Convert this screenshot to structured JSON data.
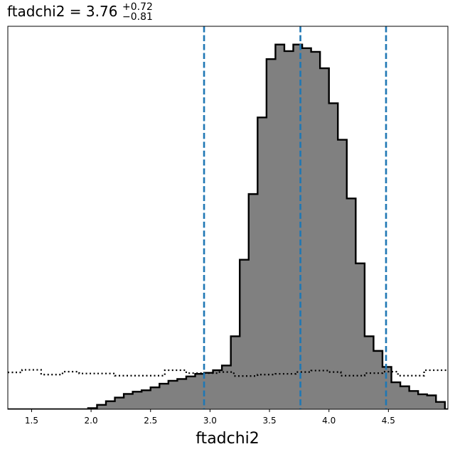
{
  "chart_data": {
    "type": "histogram",
    "title": {
      "param": "ftadchi2",
      "value": "3.76",
      "plus": "+0.72",
      "minus": "−0.81"
    },
    "xlabel": "ftadchi2",
    "ylabel": "",
    "xlim": [
      1.3,
      5.0
    ],
    "ylim": [
      0,
      1.05
    ],
    "y_ticks_shown": false,
    "grid": false,
    "x_ticks": [
      1.5,
      2.0,
      2.5,
      3.0,
      3.5,
      4.0,
      4.5
    ],
    "x_tick_labels": [
      "1.5",
      "2.0",
      "2.5",
      "3.0",
      "3.5",
      "4.0",
      "4.5"
    ],
    "bin_edges": [
      1.3,
      1.375,
      1.45,
      1.525,
      1.6,
      1.675,
      1.75,
      1.825,
      1.9,
      1.975,
      2.05,
      2.125,
      2.2,
      2.275,
      2.35,
      2.425,
      2.5,
      2.575,
      2.65,
      2.725,
      2.8,
      2.875,
      2.95,
      3.025,
      3.1,
      3.175,
      3.25,
      3.325,
      3.4,
      3.475,
      3.55,
      3.625,
      3.7,
      3.775,
      3.85,
      3.925,
      4.0,
      4.075,
      4.15,
      4.225,
      4.3,
      4.375,
      4.45,
      4.525,
      4.6,
      4.675,
      4.75,
      4.825,
      4.9,
      4.975
    ],
    "posterior_density": [
      0,
      0,
      0,
      0,
      0,
      0,
      0,
      0,
      0,
      0.003,
      0.012,
      0.022,
      0.032,
      0.042,
      0.048,
      0.052,
      0.06,
      0.07,
      0.078,
      0.083,
      0.09,
      0.097,
      0.1,
      0.107,
      0.12,
      0.2,
      0.41,
      0.59,
      0.8,
      0.96,
      1.0,
      0.982,
      1.0,
      0.99,
      0.98,
      0.935,
      0.839,
      0.739,
      0.578,
      0.4,
      0.2,
      0.16,
      0.116,
      0.074,
      0.063,
      0.05,
      0.041,
      0.038,
      0.02,
      0.0
    ],
    "prior_steps": [
      [
        1.3,
        0.101
      ],
      [
        1.42,
        0.108
      ],
      [
        1.58,
        0.095
      ],
      [
        1.76,
        0.103
      ],
      [
        1.9,
        0.098
      ],
      [
        2.2,
        0.092
      ],
      [
        2.45,
        0.092
      ],
      [
        2.62,
        0.107
      ],
      [
        2.8,
        0.099
      ],
      [
        3.08,
        0.102
      ],
      [
        3.2,
        0.091
      ],
      [
        3.4,
        0.095
      ],
      [
        3.55,
        0.097
      ],
      [
        3.72,
        0.102
      ],
      [
        3.85,
        0.106
      ],
      [
        4.0,
        0.102
      ],
      [
        4.1,
        0.092
      ],
      [
        4.3,
        0.099
      ],
      [
        4.45,
        0.103
      ],
      [
        4.58,
        0.092
      ],
      [
        4.8,
        0.107
      ],
      [
        5.0,
        0.107
      ]
    ],
    "quantile_lines": [
      2.95,
      3.76,
      4.48
    ],
    "series": [
      {
        "name": "",
        "kind": "posterior",
        "fill": "#808080",
        "edge": "#000000"
      },
      {
        "name": "",
        "kind": "prior",
        "style": "dotted",
        "color": "#000000"
      }
    ],
    "colors": {
      "quantile": "#1f77b4",
      "fill": "#808080",
      "edge": "#000000"
    }
  }
}
